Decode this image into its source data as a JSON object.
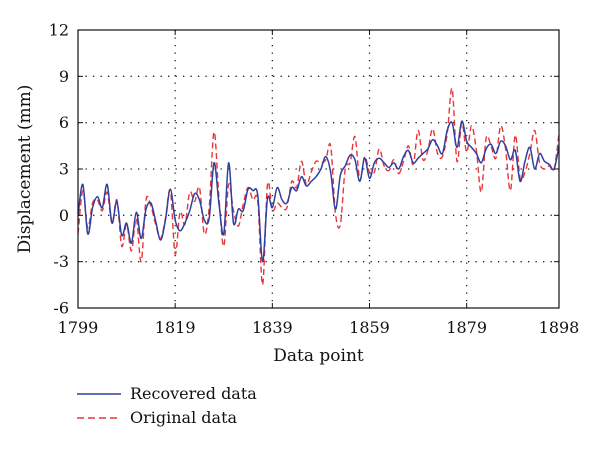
{
  "chart_data": {
    "type": "line",
    "title": "",
    "xlabel": "Data point",
    "ylabel": "Displacement (mm)",
    "xlim": [
      1799,
      1898
    ],
    "ylim": [
      -6,
      12
    ],
    "xticks": [
      1799,
      1819,
      1839,
      1859,
      1879,
      1898
    ],
    "yticks": [
      -6,
      -3,
      0,
      3,
      6,
      9,
      12
    ],
    "grid": "dotted",
    "legend_position": "bottom-left, outside plot",
    "series": [
      {
        "name": "Recovered data",
        "color": "#2f3f9e",
        "style": "solid",
        "x": [
          1799,
          1800,
          1801,
          1802,
          1803,
          1804,
          1805,
          1806,
          1807,
          1808,
          1809,
          1810,
          1811,
          1812,
          1813,
          1814,
          1815,
          1816,
          1817,
          1818,
          1819,
          1820,
          1821,
          1822,
          1823,
          1824,
          1825,
          1826,
          1827,
          1828,
          1829,
          1830,
          1831,
          1832,
          1833,
          1834,
          1835,
          1836,
          1837,
          1838,
          1839,
          1840,
          1841,
          1842,
          1843,
          1844,
          1845,
          1846,
          1847,
          1848,
          1849,
          1850,
          1851,
          1852,
          1853,
          1854,
          1855,
          1856,
          1857,
          1858,
          1859,
          1860,
          1861,
          1862,
          1863,
          1864,
          1865,
          1866,
          1867,
          1868,
          1869,
          1870,
          1871,
          1872,
          1873,
          1874,
          1875,
          1876,
          1877,
          1878,
          1879,
          1880,
          1881,
          1882,
          1883,
          1884,
          1885,
          1886,
          1887,
          1888,
          1889,
          1890,
          1891,
          1892,
          1893,
          1894,
          1895,
          1896,
          1897,
          1898
        ],
        "y": [
          0.0,
          2.0,
          -1.2,
          0.5,
          1.2,
          0.5,
          2.0,
          -0.5,
          0.9,
          -1.3,
          -0.5,
          -1.8,
          0.2,
          -1.5,
          0.4,
          0.8,
          -0.4,
          -1.6,
          -0.3,
          1.7,
          -0.3,
          -1.0,
          -0.5,
          0.3,
          1.4,
          1.0,
          -0.3,
          -0.2,
          3.4,
          0.8,
          -1.2,
          3.4,
          -0.5,
          0.4,
          0.3,
          1.7,
          1.6,
          1.3,
          -3.0,
          1.1,
          0.5,
          1.8,
          1.0,
          0.8,
          1.8,
          1.6,
          2.5,
          1.9,
          2.2,
          2.5,
          3.0,
          3.8,
          2.8,
          0.4,
          2.6,
          3.2,
          3.9,
          3.6,
          2.2,
          3.7,
          2.4,
          3.4,
          3.7,
          3.4,
          3.1,
          3.4,
          3.0,
          3.8,
          4.2,
          3.4,
          3.7,
          4.0,
          4.3,
          4.9,
          4.5,
          4.0,
          5.5,
          6.0,
          4.4,
          6.1,
          4.8,
          4.4,
          4.0,
          3.4,
          4.3,
          4.6,
          4.0,
          4.8,
          4.5,
          3.6,
          4.2,
          2.2,
          3.5,
          4.4,
          3.0,
          4.0,
          3.5,
          3.3,
          3.0,
          4.5
        ]
      },
      {
        "name": "Original data",
        "color": "#e8353a",
        "style": "dashed",
        "x": [
          1799,
          1800,
          1801,
          1802,
          1803,
          1804,
          1805,
          1806,
          1807,
          1808,
          1809,
          1810,
          1811,
          1812,
          1813,
          1814,
          1815,
          1816,
          1817,
          1818,
          1819,
          1820,
          1821,
          1822,
          1823,
          1824,
          1825,
          1826,
          1827,
          1828,
          1829,
          1830,
          1831,
          1832,
          1833,
          1834,
          1835,
          1836,
          1837,
          1838,
          1839,
          1840,
          1841,
          1842,
          1843,
          1844,
          1845,
          1846,
          1847,
          1848,
          1849,
          1850,
          1851,
          1852,
          1853,
          1854,
          1855,
          1856,
          1857,
          1858,
          1859,
          1860,
          1861,
          1862,
          1863,
          1864,
          1865,
          1866,
          1867,
          1868,
          1869,
          1870,
          1871,
          1872,
          1873,
          1874,
          1875,
          1876,
          1877,
          1878,
          1879,
          1880,
          1881,
          1882,
          1883,
          1884,
          1885,
          1886,
          1887,
          1888,
          1889,
          1890,
          1891,
          1892,
          1893,
          1894,
          1895,
          1896,
          1897,
          1898
        ],
        "y": [
          -1.2,
          1.6,
          -0.8,
          0.8,
          1.0,
          0.3,
          1.5,
          -0.5,
          1.0,
          -2.0,
          -0.6,
          -2.3,
          -0.2,
          -3.0,
          1.0,
          0.6,
          -0.6,
          -1.5,
          -0.2,
          1.6,
          -2.5,
          0.2,
          -0.6,
          1.5,
          0.9,
          1.8,
          -1.2,
          0.5,
          5.4,
          1.2,
          -2.0,
          2.0,
          0.3,
          -0.7,
          0.7,
          1.8,
          1.0,
          0.9,
          -4.5,
          2.0,
          0.3,
          0.8,
          0.5,
          0.5,
          2.2,
          1.8,
          3.5,
          2.0,
          2.8,
          3.5,
          3.4,
          3.6,
          4.5,
          0.1,
          -0.6,
          3.0,
          3.4,
          5.1,
          2.3,
          3.8,
          2.8,
          2.8,
          4.3,
          3.2,
          2.9,
          3.6,
          2.7,
          3.5,
          4.5,
          3.3,
          5.5,
          3.6,
          4.2,
          5.6,
          4.0,
          3.8,
          5.3,
          8.2,
          3.5,
          6.0,
          4.1,
          5.8,
          4.2,
          1.5,
          5.0,
          4.5,
          3.7,
          5.8,
          4.3,
          1.6,
          5.2,
          2.4,
          2.8,
          4.0,
          5.5,
          3.4,
          3.0,
          3.2,
          3.0,
          5.3
        ]
      }
    ]
  }
}
